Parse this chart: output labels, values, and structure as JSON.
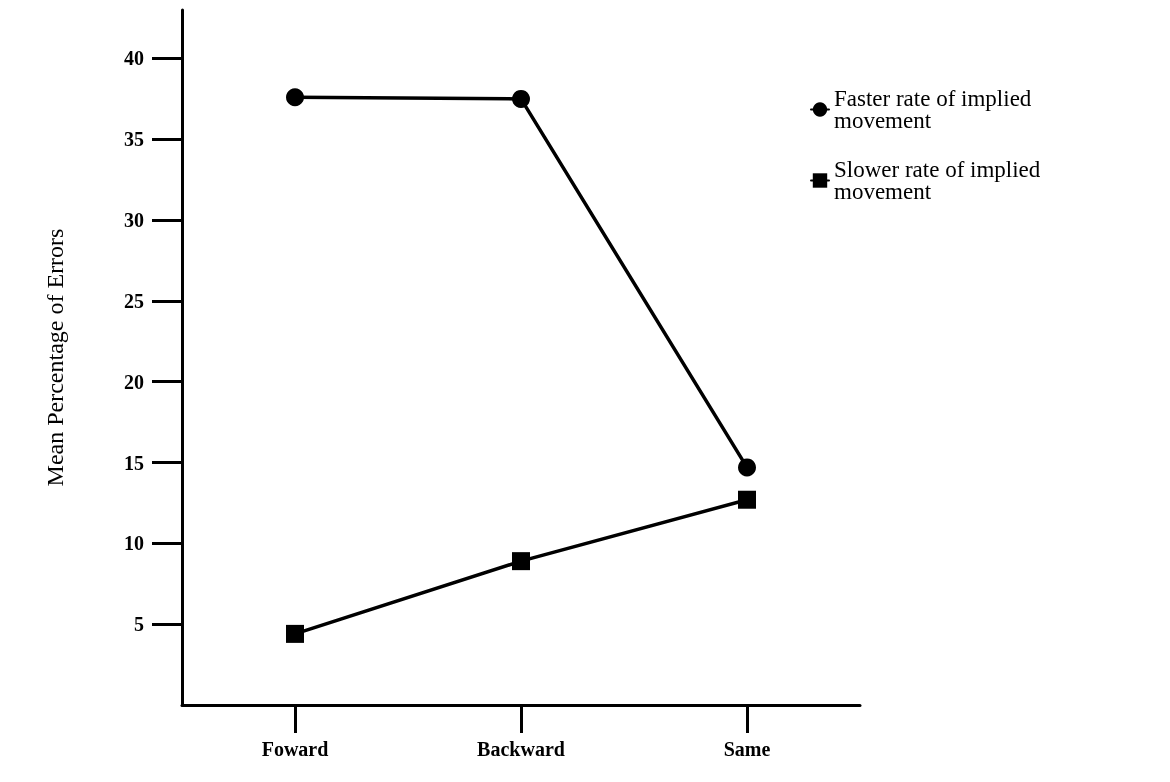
{
  "chart_data": {
    "type": "line",
    "ylabel": "Mean Percentage of Errors",
    "categories": [
      "Foward",
      "Backward",
      "Same"
    ],
    "series": [
      {
        "name": "Faster rate of implied movement",
        "color": "#000000",
        "marker": "circle",
        "values": [
          37.6,
          37.5,
          14.7
        ]
      },
      {
        "name": "Slower rate of implied movement",
        "color": "#000000",
        "marker": "square",
        "values": [
          4.4,
          8.9,
          12.7
        ]
      }
    ],
    "ylim": [
      0,
      43
    ],
    "yticks": [
      5,
      10,
      15,
      20,
      25,
      30,
      35,
      40
    ],
    "grid": false,
    "legend": "top right",
    "line_style": "solid"
  }
}
